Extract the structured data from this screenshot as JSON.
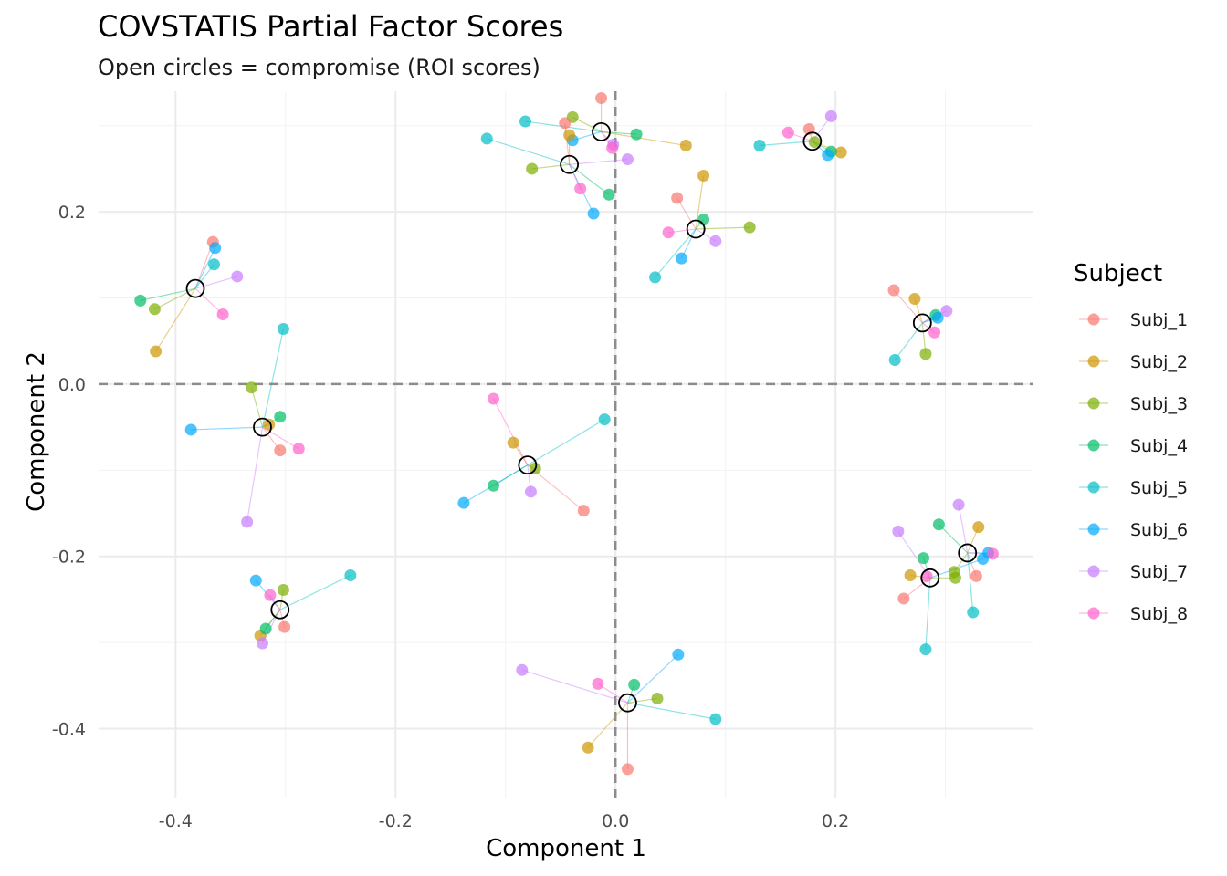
{
  "chart_data": {
    "type": "scatter",
    "title": "COVSTATIS Partial Factor Scores",
    "subtitle": "Open circles = compromise (ROI scores)",
    "xlabel": "Component 1",
    "ylabel": "Component 2",
    "xlim": [
      -0.47,
      0.38
    ],
    "ylim": [
      -0.48,
      0.34
    ],
    "x_ticks": [
      -0.4,
      -0.2,
      0.0,
      0.2
    ],
    "y_ticks": [
      -0.4,
      -0.2,
      0.0,
      0.2
    ],
    "x_tick_labels": [
      "-0.4",
      "-0.2",
      "0.0",
      "0.2"
    ],
    "y_tick_labels": [
      "-0.4",
      "-0.2",
      "0.0",
      "0.2"
    ],
    "reference_lines": {
      "x": 0,
      "y": 0
    },
    "grid": true,
    "legend": {
      "title": "Subject",
      "placement": "right"
    },
    "series": [
      {
        "name": "Subj_1",
        "color": "#F8766D"
      },
      {
        "name": "Subj_2",
        "color": "#CD9600"
      },
      {
        "name": "Subj_3",
        "color": "#7CAE00"
      },
      {
        "name": "Subj_4",
        "color": "#00BE67"
      },
      {
        "name": "Subj_5",
        "color": "#00BFC4"
      },
      {
        "name": "Subj_6",
        "color": "#00A9FF"
      },
      {
        "name": "Subj_7",
        "color": "#C77CFF"
      },
      {
        "name": "Subj_8",
        "color": "#FF61CC"
      }
    ],
    "roi_points": [
      {
        "compromise": [
          -0.382,
          0.111
        ],
        "partials": [
          [
            -0.366,
            0.165
          ],
          [
            -0.418,
            0.038
          ],
          [
            -0.419,
            0.087
          ],
          [
            -0.432,
            0.097
          ],
          [
            -0.365,
            0.139
          ],
          [
            -0.364,
            0.158
          ],
          [
            -0.344,
            0.125
          ],
          [
            -0.357,
            0.081
          ]
        ]
      },
      {
        "compromise": [
          -0.321,
          -0.05
        ],
        "partials": [
          [
            -0.305,
            -0.077
          ],
          [
            -0.315,
            -0.047
          ],
          [
            -0.331,
            -0.004
          ],
          [
            -0.305,
            -0.038
          ],
          [
            -0.302,
            0.064
          ],
          [
            -0.386,
            -0.053
          ],
          [
            -0.335,
            -0.16
          ],
          [
            -0.288,
            -0.075
          ]
        ]
      },
      {
        "compromise": [
          -0.305,
          -0.262
        ],
        "partials": [
          [
            -0.301,
            -0.282
          ],
          [
            -0.323,
            -0.292
          ],
          [
            -0.302,
            -0.239
          ],
          [
            -0.318,
            -0.284
          ],
          [
            -0.241,
            -0.222
          ],
          [
            -0.327,
            -0.228
          ],
          [
            -0.321,
            -0.301
          ],
          [
            -0.314,
            -0.245
          ]
        ]
      },
      {
        "compromise": [
          -0.013,
          0.293
        ],
        "partials": [
          [
            -0.013,
            0.332
          ],
          [
            0.064,
            0.277
          ],
          [
            -0.039,
            0.31
          ],
          [
            0.019,
            0.29
          ],
          [
            -0.082,
            0.305
          ],
          [
            -0.039,
            0.283
          ],
          [
            -0.002,
            0.278
          ],
          [
            -0.003,
            0.274
          ]
        ]
      },
      {
        "compromise": [
          -0.042,
          0.255
        ],
        "partials": [
          [
            -0.046,
            0.303
          ],
          [
            -0.042,
            0.289
          ],
          [
            -0.076,
            0.25
          ],
          [
            -0.006,
            0.22
          ],
          [
            -0.117,
            0.285
          ],
          [
            -0.02,
            0.198
          ],
          [
            0.011,
            0.261
          ],
          [
            -0.032,
            0.227
          ]
        ]
      },
      {
        "compromise": [
          0.073,
          0.18
        ],
        "partials": [
          [
            0.056,
            0.216
          ],
          [
            0.08,
            0.242
          ],
          [
            0.122,
            0.182
          ],
          [
            0.08,
            0.191
          ],
          [
            0.036,
            0.124
          ],
          [
            0.06,
            0.146
          ],
          [
            0.091,
            0.166
          ],
          [
            0.048,
            0.176
          ]
        ]
      },
      {
        "compromise": [
          0.179,
          0.282
        ],
        "partials": [
          [
            0.176,
            0.296
          ],
          [
            0.205,
            0.269
          ],
          [
            0.181,
            0.281
          ],
          [
            0.196,
            0.27
          ],
          [
            0.131,
            0.277
          ],
          [
            0.193,
            0.266
          ],
          [
            0.196,
            0.311
          ],
          [
            0.157,
            0.292
          ]
        ]
      },
      {
        "compromise": [
          0.279,
          0.071
        ],
        "partials": [
          [
            0.253,
            0.109
          ],
          [
            0.272,
            0.099
          ],
          [
            0.282,
            0.035
          ],
          [
            0.291,
            0.08
          ],
          [
            0.254,
            0.028
          ],
          [
            0.293,
            0.077
          ],
          [
            0.301,
            0.085
          ],
          [
            0.29,
            0.06
          ]
        ]
      },
      {
        "compromise": [
          -0.08,
          -0.094
        ],
        "partials": [
          [
            -0.029,
            -0.147
          ],
          [
            -0.093,
            -0.068
          ],
          [
            -0.073,
            -0.098
          ],
          [
            -0.111,
            -0.118
          ],
          [
            -0.01,
            -0.041
          ],
          [
            -0.138,
            -0.138
          ],
          [
            -0.077,
            -0.125
          ],
          [
            -0.111,
            -0.017
          ]
        ]
      },
      {
        "compromise": [
          0.32,
          -0.196
        ],
        "partials": [
          [
            0.328,
            -0.223
          ],
          [
            0.33,
            -0.166
          ],
          [
            0.308,
            -0.218
          ],
          [
            0.294,
            -0.163
          ],
          [
            0.325,
            -0.265
          ],
          [
            0.339,
            -0.196
          ],
          [
            0.312,
            -0.14
          ],
          [
            0.343,
            -0.197
          ]
        ]
      },
      {
        "compromise": [
          0.286,
          -0.225
        ],
        "partials": [
          [
            0.262,
            -0.249
          ],
          [
            0.268,
            -0.222
          ],
          [
            0.309,
            -0.225
          ],
          [
            0.28,
            -0.202
          ],
          [
            0.282,
            -0.308
          ],
          [
            0.334,
            -0.203
          ],
          [
            0.257,
            -0.171
          ],
          [
            0.283,
            -0.223
          ]
        ]
      },
      {
        "compromise": [
          0.011,
          -0.37
        ],
        "partials": [
          [
            0.011,
            -0.447
          ],
          [
            -0.025,
            -0.422
          ],
          [
            0.038,
            -0.365
          ],
          [
            0.017,
            -0.349
          ],
          [
            0.091,
            -0.389
          ],
          [
            0.057,
            -0.314
          ],
          [
            -0.085,
            -0.332
          ],
          [
            -0.016,
            -0.348
          ]
        ]
      }
    ]
  }
}
